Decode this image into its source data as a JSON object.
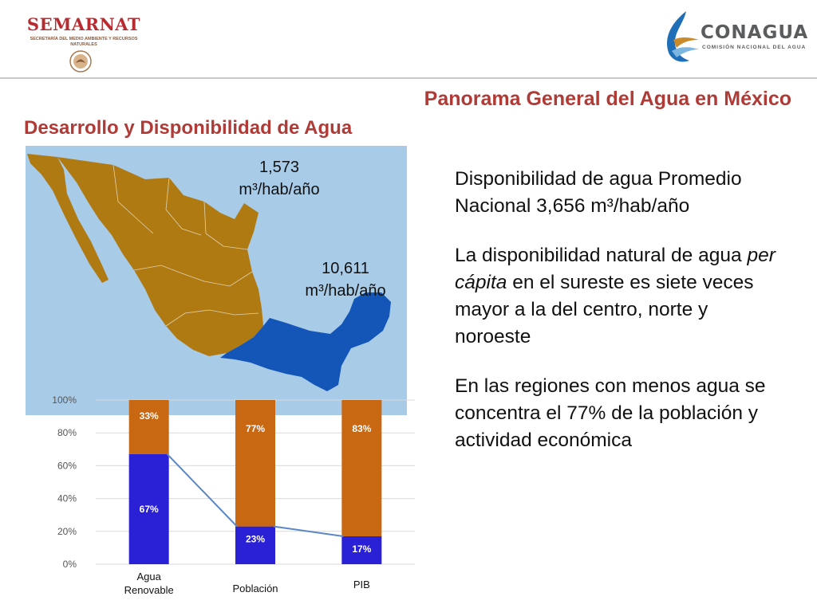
{
  "header": {
    "left_logo": {
      "title": "SEMARNAT",
      "subtitle": "SECRETARÍA DEL MEDIO AMBIENTE Y RECURSOS NATURALES"
    },
    "right_logo": {
      "title": "CONAGUA",
      "subtitle": "COMISIÓN NACIONAL DEL AGUA"
    }
  },
  "slide": {
    "title": "Panorama General del Agua en México",
    "subtitle": "Desarrollo y Disponibilidad de Agua"
  },
  "map": {
    "label_north_value": "1,573",
    "label_north_unit": "m³/hab/año",
    "label_south_value": "10,611",
    "label_south_unit": "m³/hab/año",
    "colors": {
      "north": "#b07a12",
      "south": "#1456b8",
      "background": "#a8cbe8"
    }
  },
  "text": {
    "p1": "Disponibilidad de agua Promedio Nacional 3,656 m³/hab/año",
    "p2_before": "La disponibilidad natural de agua ",
    "p2_italic": "per cápita",
    "p2_after": " en el sureste es siete veces mayor a la del centro, norte y noroeste",
    "p3": "En las regiones con menos agua se concentra el 77% de la población y actividad económica"
  },
  "chart_data": {
    "type": "bar",
    "stacked": true,
    "categories": [
      "Agua Renovable",
      "Población",
      "PIB"
    ],
    "category_lines": [
      [
        "Agua",
        "Renovable"
      ],
      [
        "Población"
      ],
      [
        "PIB"
      ]
    ],
    "series": [
      {
        "values": [
          67,
          23,
          17
        ],
        "labels": [
          "67%",
          "23%",
          "17%"
        ],
        "color": "#2a20d6"
      },
      {
        "values": [
          33,
          77,
          83
        ],
        "labels": [
          "33%",
          "77%",
          "83%"
        ],
        "color": "#c96812"
      }
    ],
    "ylim": [
      0,
      100
    ],
    "yticks": [
      "0%",
      "20%",
      "40%",
      "60%",
      "80%",
      "100%"
    ],
    "connector_color": "#5b86c8",
    "grid": true
  }
}
